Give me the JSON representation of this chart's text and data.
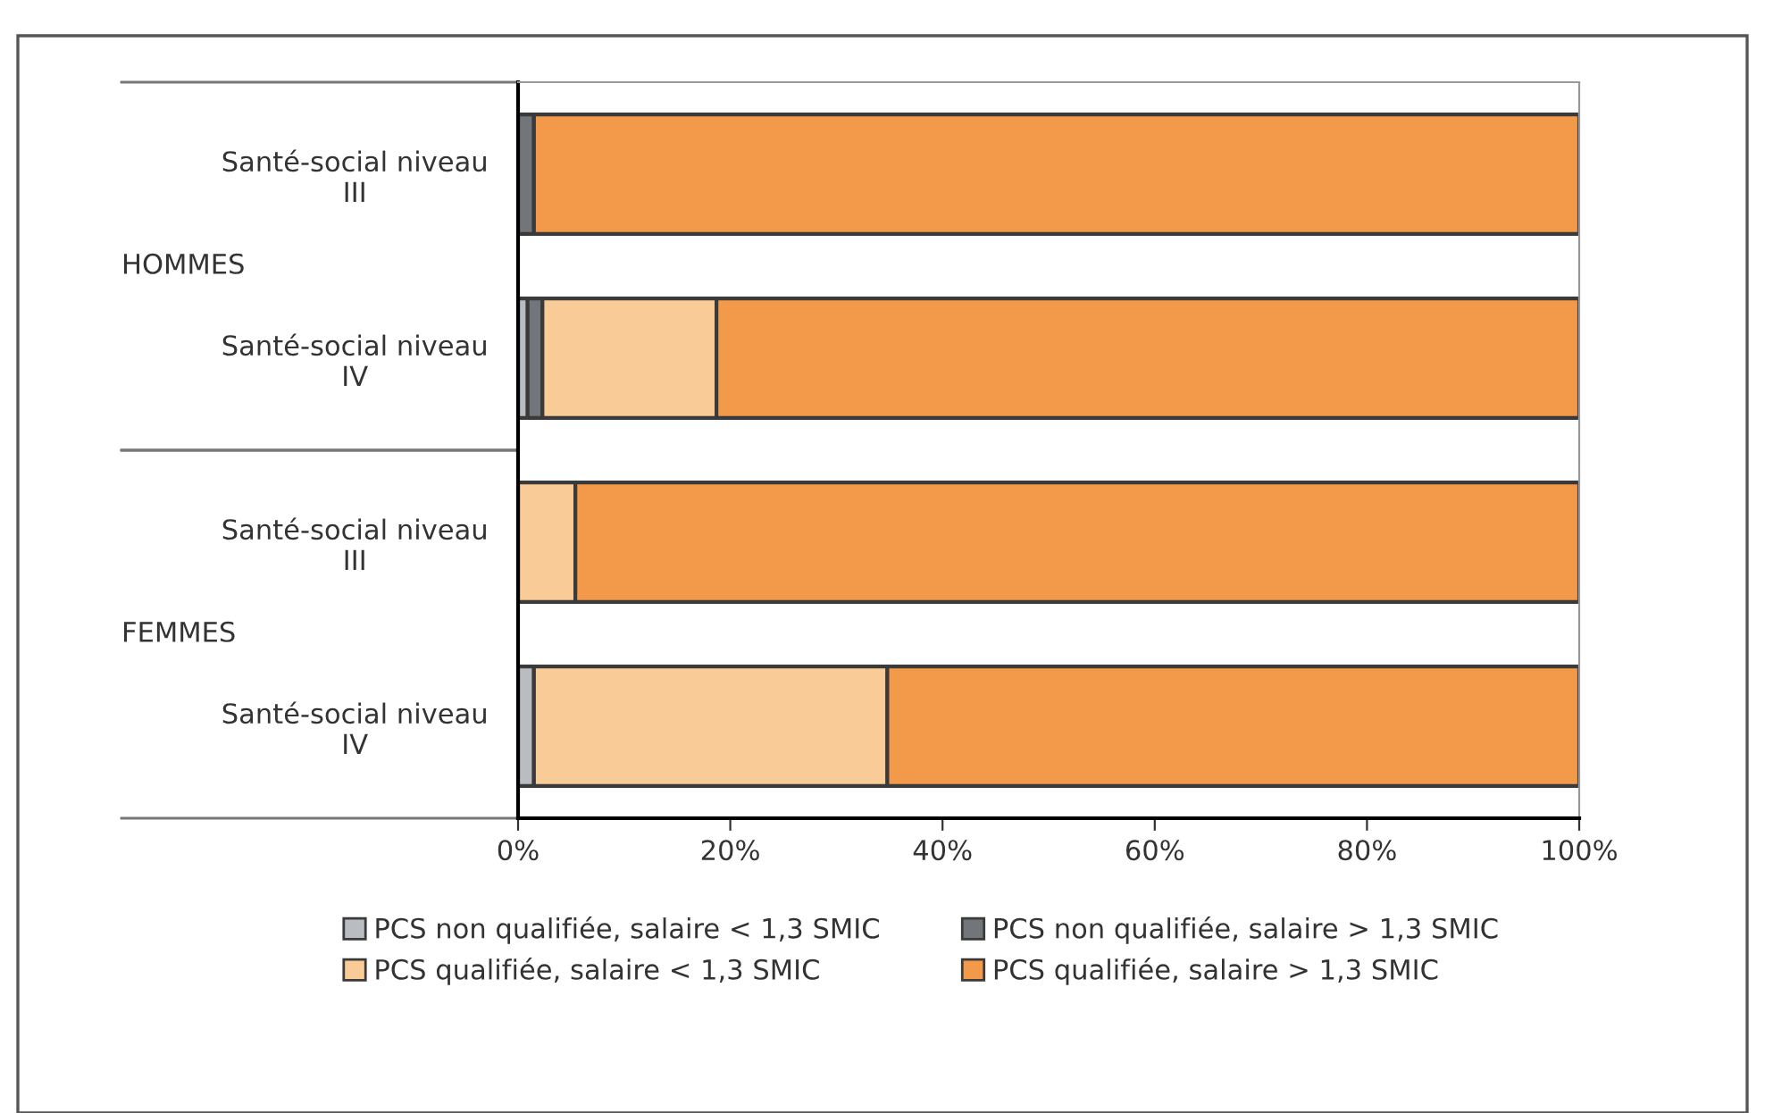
{
  "chart_data": {
    "type": "bar",
    "orientation": "horizontal",
    "stacked": true,
    "categories": [
      "Santé-social niveau\nIII",
      "Santé-social niveau\nIV",
      "Santé-social niveau\nIII",
      "Santé-social niveau\nIV"
    ],
    "series": [
      {
        "name": "PCS non qualifiée, salaire < 1,3 SMIC",
        "color": "#b9bcc0",
        "values": [
          0,
          0.9,
          0,
          1.5
        ]
      },
      {
        "name": "PCS non qualifiée, salaire > 1,3 SMIC",
        "color": "#72767a",
        "values": [
          1.5,
          1.4,
          null,
          0
        ]
      },
      {
        "name": "PCS qualifiée, salaire < 1,3 SMIC",
        "color": "#f9cb97",
        "values": [
          0,
          16.4,
          5.4,
          33.3
        ]
      },
      {
        "name": "PCS qualifiée, salaire > 1,3 SMIC",
        "color": "#f29a4a",
        "values": [
          98.5,
          81.3,
          94.6,
          65.2
        ]
      }
    ],
    "annotations": [
      "HOMMES",
      "FEMMES"
    ],
    "xlim": [
      0,
      100
    ],
    "xticks": [
      {
        "value": 0,
        "label": "0%"
      },
      {
        "value": 20,
        "label": "20%"
      },
      {
        "value": 40,
        "label": "40%"
      },
      {
        "value": 60,
        "label": "60%"
      },
      {
        "value": 80,
        "label": "80%"
      },
      {
        "value": 100,
        "label": "100%"
      }
    ],
    "legend": "bottom",
    "grid": false
  }
}
